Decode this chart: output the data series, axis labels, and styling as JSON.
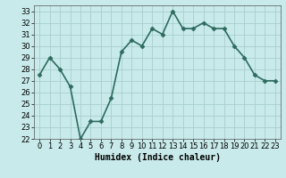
{
  "x": [
    0,
    1,
    2,
    3,
    4,
    5,
    6,
    7,
    8,
    9,
    10,
    11,
    12,
    13,
    14,
    15,
    16,
    17,
    18,
    19,
    20,
    21,
    22,
    23
  ],
  "y": [
    27.5,
    29.0,
    28.0,
    26.5,
    22.0,
    23.5,
    23.5,
    25.5,
    29.5,
    30.5,
    30.0,
    31.5,
    31.0,
    33.0,
    31.5,
    31.5,
    32.0,
    31.5,
    31.5,
    30.0,
    29.0,
    27.5,
    27.0,
    27.0
  ],
  "line_color": "#2d6b5e",
  "marker": "D",
  "marker_size": 2.5,
  "bg_color": "#c8eaea",
  "grid_color": "#a8cece",
  "xlabel": "Humidex (Indice chaleur)",
  "xlim": [
    -0.5,
    23.5
  ],
  "ylim": [
    22,
    33.5
  ],
  "yticks": [
    22,
    23,
    24,
    25,
    26,
    27,
    28,
    29,
    30,
    31,
    32,
    33
  ],
  "xticks": [
    0,
    1,
    2,
    3,
    4,
    5,
    6,
    7,
    8,
    9,
    10,
    11,
    12,
    13,
    14,
    15,
    16,
    17,
    18,
    19,
    20,
    21,
    22,
    23
  ],
  "xlabel_fontsize": 7,
  "tick_fontsize": 6,
  "linewidth": 1.2
}
